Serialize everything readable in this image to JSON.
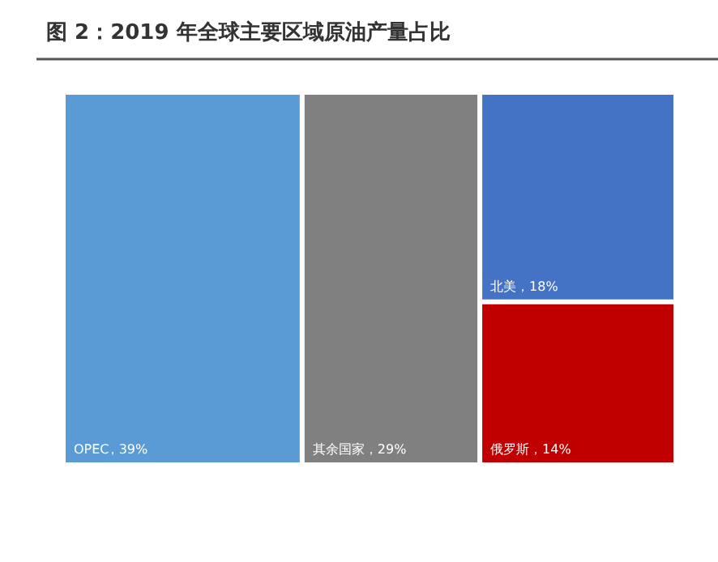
{
  "chart_data": {
    "type": "other",
    "title": "图 2：2019 年全球主要区域原油产量占比",
    "categories": [
      "OPEC",
      "其余国家",
      "北美",
      "俄罗斯"
    ],
    "values": [
      39,
      29,
      18,
      14
    ],
    "value_labels": [
      "，39%",
      "，29%",
      "，18%",
      "，14%"
    ],
    "colors": [
      "#5b9bd5",
      "#808080",
      "#4472c4",
      "#c00000"
    ]
  }
}
